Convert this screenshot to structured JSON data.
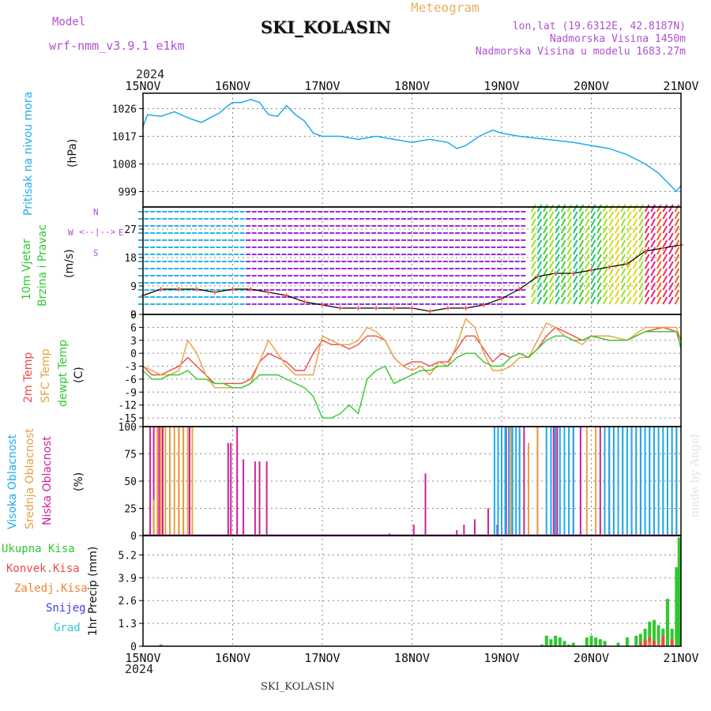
{
  "header": {
    "model_label": "Model",
    "model_value": "wrf-nmm_v3.9.1 e1km",
    "station": "SKI_KOLASIN",
    "title": "Meteogram",
    "lonlat": "lon,lat (19.6312E, 42.8187N)",
    "altitude": "Nadmorska Visina 1450m",
    "model_altitude": "Nadmorska Visina u modelu 1683.27m",
    "footer_station": "SKI_KOLASIN",
    "credit": "made by Angel"
  },
  "time_axis": {
    "year_top": "2024",
    "year_bottom": "2024",
    "labels": [
      "15NOV",
      "16NOV",
      "17NOV",
      "18NOV",
      "19NOV",
      "20NOV",
      "21NOV"
    ]
  },
  "colors": {
    "pressure": "#1eaaf0",
    "temp2m": "#f04848",
    "sfc_temp": "#e8a040",
    "dewpt": "#30c830",
    "high_cloud": "#1eaaf0",
    "mid_cloud": "#e8a040",
    "low_cloud": "#d0209a",
    "total_precip": "#30c830",
    "conv_precip": "#f04848",
    "freezing": "#f08030",
    "snow": "#4040e0",
    "hail": "#30c8c8",
    "labels_purple": "#b050d0"
  },
  "panels": {
    "pressure": {
      "ylabel1": "Pritisak na nivou mora",
      "ylabel2": "(hPa)"
    },
    "wind": {
      "ylabel1": "10m Vjetar",
      "ylabel2": "Brzina i Pravac",
      "ylabel3": "(m/s)",
      "compass": {
        "n": "N",
        "s": "S",
        "w": "W",
        "e": "E"
      }
    },
    "temp": {
      "ylabel_2m": "2m Temp",
      "ylabel_sfc": "SFC Temp",
      "ylabel_dew": "dewpt Temp",
      "unit": "(C)"
    },
    "cloud": {
      "ylabel_high": "Visoka Oblacnost",
      "ylabel_mid": "Srednja Oblacnost",
      "ylabel_low": "Niska Oblacnost",
      "unit": "(%)"
    },
    "precip": {
      "ylabel": "1hr Precip (mm)",
      "legend": [
        "Ukupna Kisa",
        "Konvek.Kisa",
        "Zaledj.Kisa",
        "Snijeg",
        "Grad"
      ]
    }
  },
  "chart_data": [
    {
      "type": "line",
      "name": "pressure",
      "x_unit": "days since 15NOV 00UTC",
      "ylim": [
        994,
        1031
      ],
      "yticks": [
        999,
        1008,
        1017,
        1026
      ],
      "series": [
        {
          "name": "",
          "x": [
            0,
            0.05,
            0.2,
            0.35,
            0.5,
            0.65,
            0.75,
            0.85,
            0.95,
            1.0,
            1.1,
            1.2,
            1.3,
            1.4,
            1.5,
            1.6,
            1.7,
            1.8,
            1.9,
            2.0,
            2.2,
            2.4,
            2.6,
            2.8,
            3.0,
            3.2,
            3.4,
            3.5,
            3.6,
            3.75,
            3.9,
            4.0,
            4.2,
            4.5,
            4.8,
            5.0,
            5.2,
            5.4,
            5.6,
            5.75,
            5.85,
            5.95,
            6.0
          ],
          "values": [
            1020,
            1024,
            1023.5,
            1025,
            1023,
            1021.5,
            1023,
            1024.5,
            1027,
            1028,
            1028,
            1029,
            1028,
            1024,
            1023.5,
            1027,
            1024,
            1022,
            1018,
            1017,
            1017,
            1016,
            1017,
            1016,
            1015,
            1016,
            1015,
            1013,
            1014,
            1017,
            1019,
            1018,
            1017,
            1016,
            1015,
            1014,
            1013,
            1011,
            1008,
            1005,
            1002,
            999,
            1001
          ]
        }
      ]
    },
    {
      "type": "line",
      "name": "wind",
      "ylim": [
        0,
        34
      ],
      "yticks": [
        0,
        9,
        18,
        27
      ],
      "series": [
        {
          "name": "",
          "x": [
            0,
            0.2,
            0.4,
            0.6,
            0.8,
            1.0,
            1.2,
            1.4,
            1.6,
            1.8,
            2.0,
            2.2,
            2.4,
            2.6,
            2.8,
            3.0,
            3.2,
            3.4,
            3.6,
            3.8,
            4.0,
            4.2,
            4.4,
            4.6,
            4.8,
            5.0,
            5.2,
            5.4,
            5.6,
            5.8,
            6.0
          ],
          "values": [
            6,
            8,
            8,
            8,
            7,
            8,
            8,
            7,
            6,
            4,
            3,
            2,
            2,
            2,
            2,
            2,
            1,
            2,
            2,
            3,
            5,
            8,
            12,
            13,
            13,
            14,
            15,
            16,
            20,
            21,
            22
          ]
        }
      ]
    },
    {
      "type": "line",
      "name": "temperature",
      "ylim": [
        -17,
        9
      ],
      "yticks": [
        -15,
        -12,
        -9,
        -6,
        -3,
        0,
        3,
        6,
        9
      ],
      "x": [
        0,
        0.1,
        0.2,
        0.3,
        0.4,
        0.5,
        0.6,
        0.7,
        0.8,
        0.9,
        1.0,
        1.1,
        1.2,
        1.3,
        1.4,
        1.5,
        1.6,
        1.7,
        1.8,
        1.9,
        2.0,
        2.1,
        2.2,
        2.3,
        2.4,
        2.5,
        2.6,
        2.7,
        2.8,
        2.9,
        3.0,
        3.1,
        3.2,
        3.3,
        3.4,
        3.5,
        3.6,
        3.7,
        3.8,
        3.9,
        4.0,
        4.1,
        4.2,
        4.3,
        4.4,
        4.5,
        4.6,
        4.7,
        4.8,
        4.9,
        5.0,
        5.2,
        5.4,
        5.6,
        5.8,
        5.95,
        6.0
      ],
      "series": [
        {
          "name": "2m Temp",
          "values": [
            -3,
            -5,
            -5,
            -4,
            -3,
            -1,
            -3,
            -5,
            -7,
            -7,
            -7,
            -7,
            -6,
            -2,
            0,
            -1,
            -2,
            -4,
            -4,
            0,
            3,
            2,
            2,
            1,
            2,
            4,
            4,
            3,
            -1,
            -3,
            -2,
            -2,
            -3,
            -2,
            -2,
            1,
            4,
            4,
            1,
            -2,
            0,
            -1,
            0,
            -1,
            1,
            4,
            6,
            5,
            4,
            3,
            4,
            3,
            3,
            5,
            6,
            5,
            3
          ]
        },
        {
          "name": "SFC Temp",
          "values": [
            -3,
            -4,
            -5,
            -5,
            -4,
            3,
            0,
            -5,
            -8,
            -8,
            -8,
            -8,
            -7,
            -2,
            3,
            0,
            -3,
            -5,
            -5,
            -5,
            4,
            3,
            2,
            2,
            3,
            6,
            5,
            3,
            -1,
            -3,
            -4,
            -3,
            -5,
            -2,
            -3,
            2,
            8,
            6,
            0,
            -4,
            -4,
            -3,
            -1,
            -1,
            3,
            7,
            6,
            4,
            3,
            2,
            4,
            4,
            3,
            6,
            6,
            6,
            3
          ]
        },
        {
          "name": "dewpt Temp",
          "values": [
            -4,
            -6,
            -6,
            -5,
            -5,
            -4,
            -6,
            -6,
            -7,
            -7,
            -8,
            -8,
            -7,
            -5,
            -5,
            -5,
            -6,
            -7,
            -8,
            -10,
            -15,
            -15,
            -14,
            -12,
            -14,
            -6,
            -4,
            -3,
            -7,
            -6,
            -5,
            -4,
            -4,
            -3,
            -3,
            -1,
            0,
            0,
            -2,
            -3,
            -3,
            -1,
            0,
            -1,
            1,
            3,
            4,
            4,
            3,
            3,
            4,
            3,
            3,
            5,
            5,
            5,
            1
          ]
        }
      ]
    },
    {
      "type": "bar",
      "name": "cloud",
      "ylim": [
        0,
        100
      ],
      "yticks": [
        0,
        25,
        50,
        75,
        100
      ],
      "series": [
        {
          "name": "Niska Oblacnost",
          "x": [
            0.08,
            0.12,
            0.18,
            0.22,
            0.3,
            0.4,
            0.45,
            0.52,
            0.95,
            0.98,
            1.05,
            1.12,
            1.25,
            1.3,
            1.38,
            2.75,
            3.02,
            3.15,
            3.5,
            3.58,
            3.7,
            3.85,
            3.95,
            4.05,
            4.12,
            4.25,
            4.4,
            4.58,
            4.62,
            4.8,
            4.88,
            5.1,
            5.2,
            5.45,
            5.55,
            5.7,
            5.85,
            5.95
          ],
          "values": [
            100,
            100,
            100,
            100,
            100,
            100,
            100,
            100,
            85,
            85,
            100,
            70,
            68,
            68,
            68,
            2,
            10,
            57,
            5,
            10,
            15,
            25,
            10,
            100,
            100,
            100,
            100,
            100,
            100,
            100,
            100,
            100,
            100,
            100,
            100,
            100,
            100,
            100
          ]
        },
        {
          "name": "Srednja Oblacnost",
          "x": [
            0.12,
            0.16,
            0.2,
            0.25,
            0.3,
            0.35,
            0.4,
            0.45,
            0.5,
            0.55,
            4.0,
            4.1,
            4.2,
            4.3,
            4.4,
            4.6,
            4.95,
            5.05,
            5.25,
            5.35,
            5.5,
            5.65,
            5.8,
            5.9
          ],
          "values": [
            33,
            100,
            100,
            100,
            100,
            100,
            100,
            100,
            100,
            100,
            10,
            100,
            100,
            85,
            100,
            95,
            100,
            100,
            100,
            100,
            100,
            100,
            85,
            100
          ]
        },
        {
          "name": "Visoka Oblacnost",
          "x": [
            3.92,
            3.96,
            4.0,
            4.04,
            4.08,
            4.12,
            4.16,
            4.2,
            4.5,
            4.55,
            4.6,
            4.65,
            4.7,
            4.75,
            4.8,
            5.15,
            5.2,
            5.25,
            5.3,
            5.35,
            5.4,
            5.45,
            5.5,
            5.55,
            5.6,
            5.65,
            5.7,
            5.75,
            5.8,
            5.85,
            5.9,
            5.95
          ],
          "values": [
            100,
            100,
            100,
            100,
            100,
            100,
            100,
            100,
            100,
            100,
            100,
            100,
            100,
            100,
            100,
            100,
            100,
            100,
            100,
            100,
            100,
            100,
            100,
            100,
            100,
            100,
            100,
            100,
            100,
            100,
            100,
            100
          ]
        }
      ]
    },
    {
      "type": "bar",
      "name": "precip",
      "ylim": [
        0,
        6.3
      ],
      "yticks": [
        0,
        1.3,
        2.6,
        3.9,
        5.2
      ],
      "series": [
        {
          "name": "Ukupna Kisa",
          "x": [
            0.2,
            4.45,
            4.5,
            4.55,
            4.6,
            4.65,
            4.7,
            4.75,
            4.8,
            4.95,
            5.0,
            5.05,
            5.1,
            5.15,
            5.3,
            5.4,
            5.5,
            5.55,
            5.6,
            5.65,
            5.7,
            5.75,
            5.8,
            5.85,
            5.9,
            5.95,
            5.98
          ],
          "values": [
            0.1,
            0.1,
            0.6,
            0.4,
            0.6,
            0.5,
            0.3,
            0.1,
            0.2,
            0.5,
            0.6,
            0.5,
            0.4,
            0.3,
            0.2,
            0.5,
            0.6,
            0.7,
            1.0,
            1.4,
            1.5,
            1.2,
            1.0,
            2.7,
            1.0,
            4.5,
            6.2
          ]
        },
        {
          "name": "Konvek.Kisa",
          "x": [
            5.55,
            5.6,
            5.65,
            5.7,
            5.8,
            5.9
          ],
          "values": [
            0.2,
            0.4,
            0.5,
            0.3,
            0.6,
            0.4
          ]
        },
        {
          "name": "Zaledj.Kisa",
          "x": [
            5.65,
            5.75
          ],
          "values": [
            0.3,
            0.2
          ]
        }
      ]
    }
  ]
}
